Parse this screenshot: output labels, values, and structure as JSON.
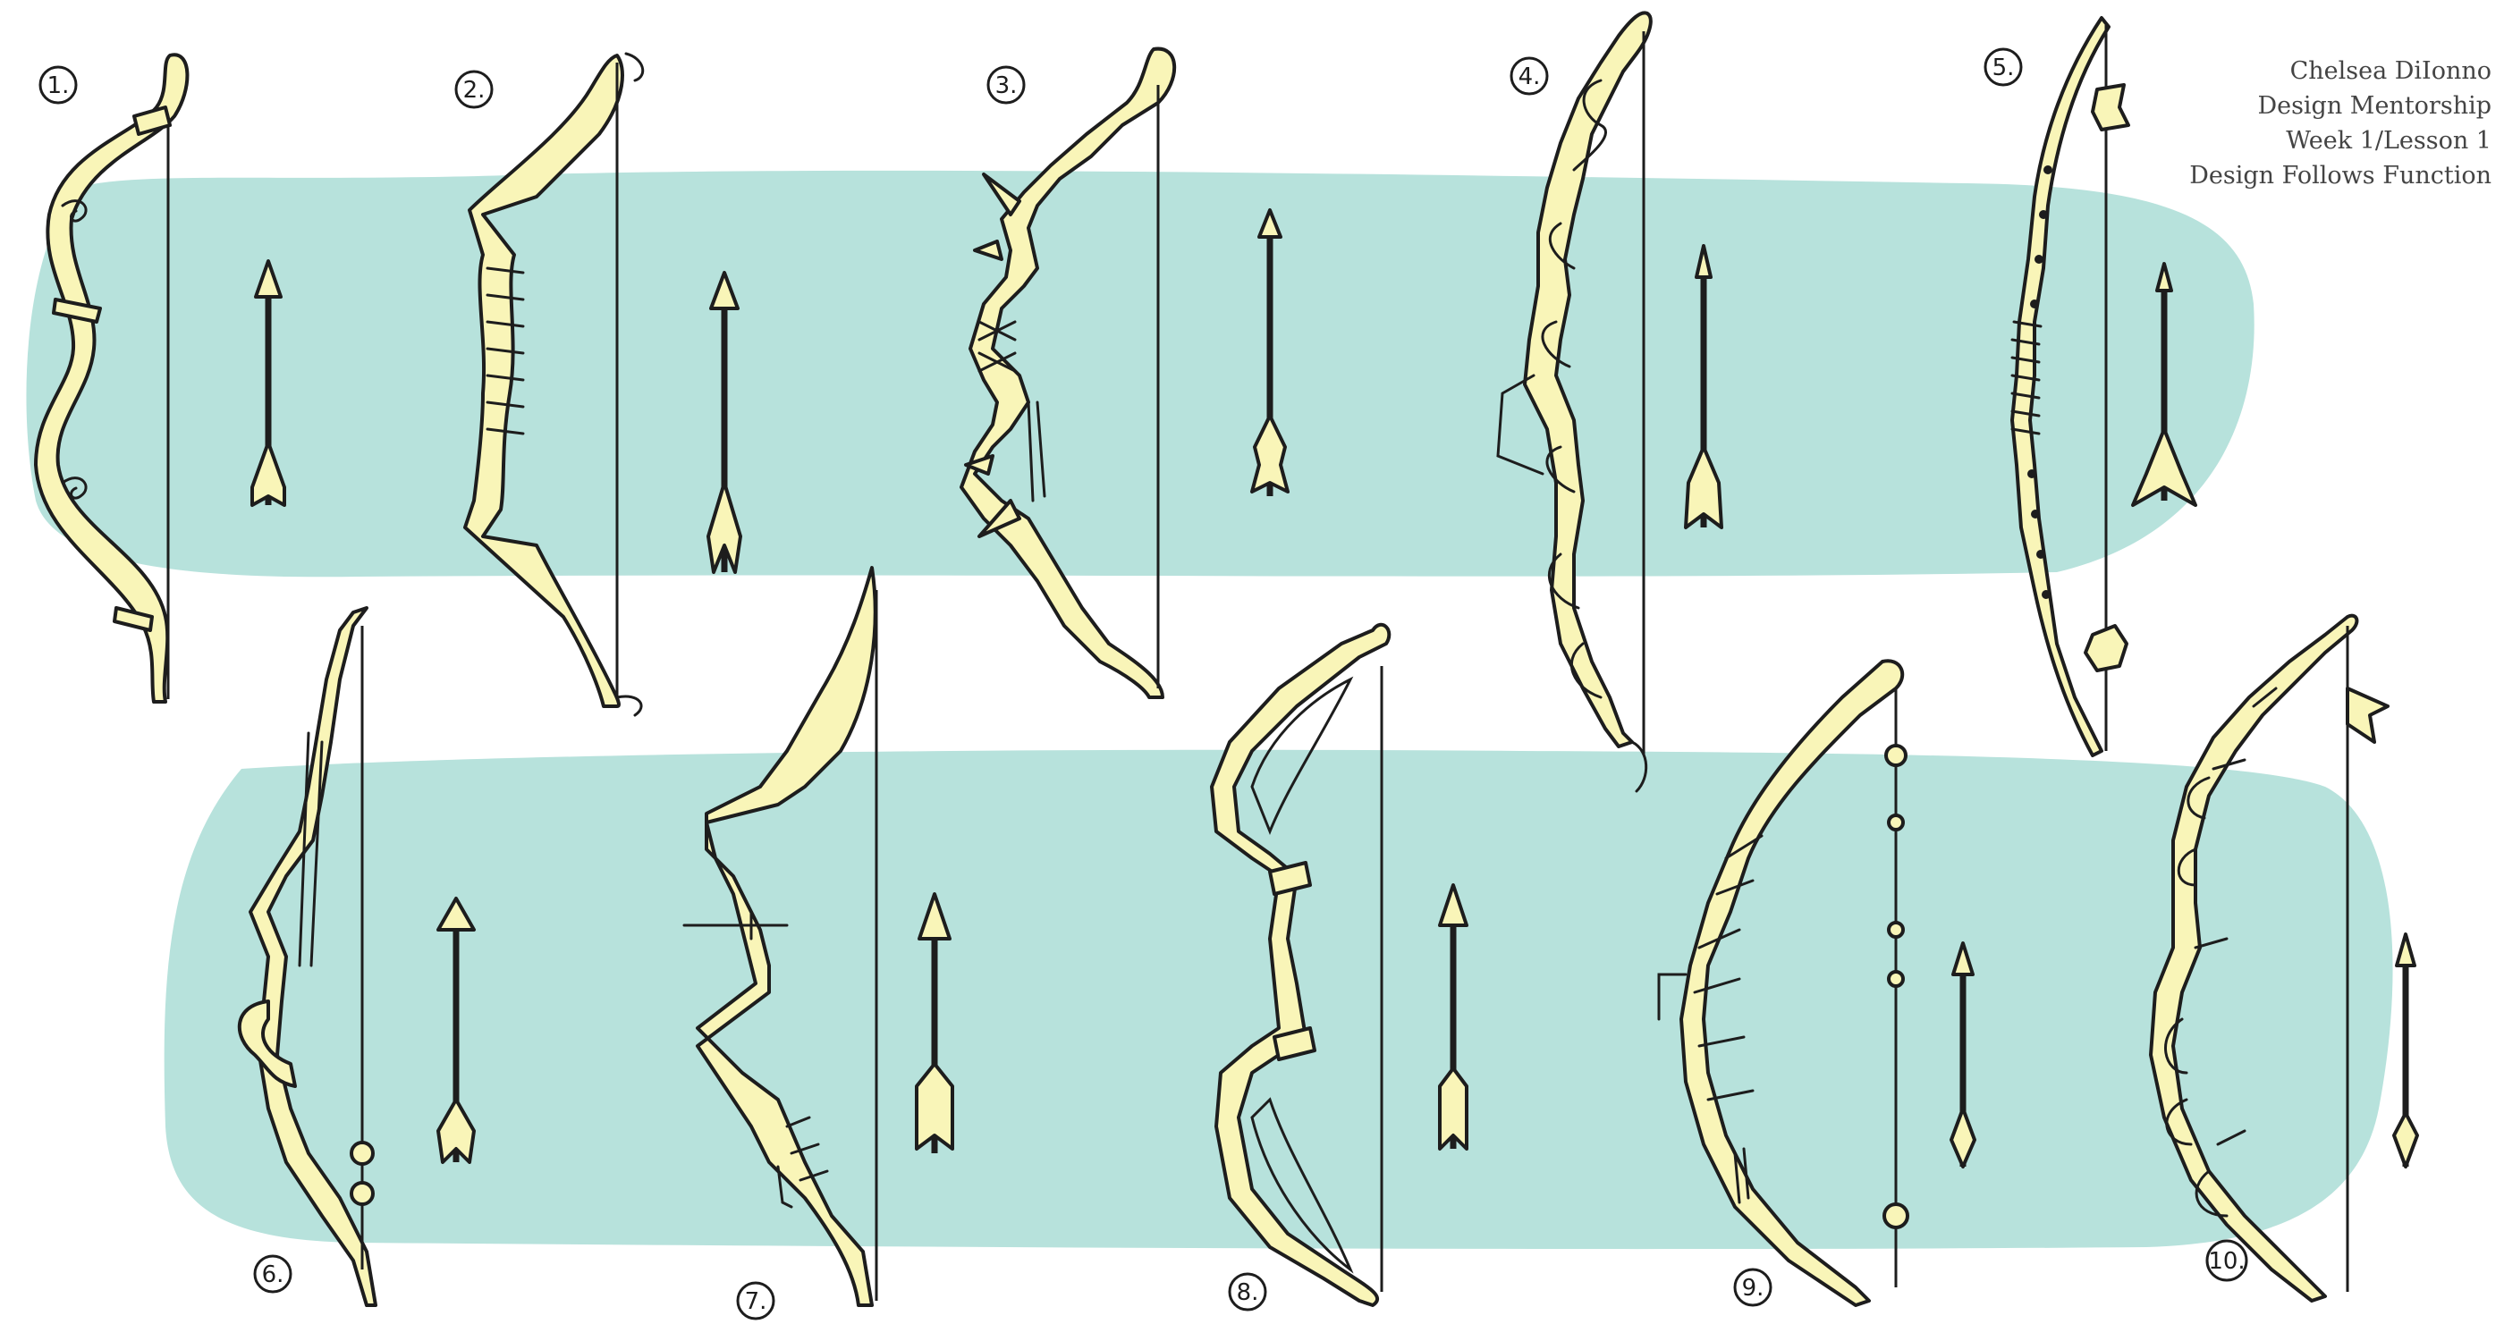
{
  "colors": {
    "band": "#b7e2dc",
    "fill": "#f9f5b8",
    "ink": "#1d1d1d",
    "credit_text": "#444444"
  },
  "credit": {
    "name": "Chelsea DiIonno",
    "program": "Design Mentorship",
    "lesson": "Week 1/Lesson 1",
    "theme": "Design Follows Function"
  },
  "designs": [
    {
      "label": "1."
    },
    {
      "label": "2."
    },
    {
      "label": "3."
    },
    {
      "label": "4."
    },
    {
      "label": "5."
    },
    {
      "label": "6."
    },
    {
      "label": "7."
    },
    {
      "label": "8."
    },
    {
      "label": "9."
    },
    {
      "label": "10."
    }
  ]
}
